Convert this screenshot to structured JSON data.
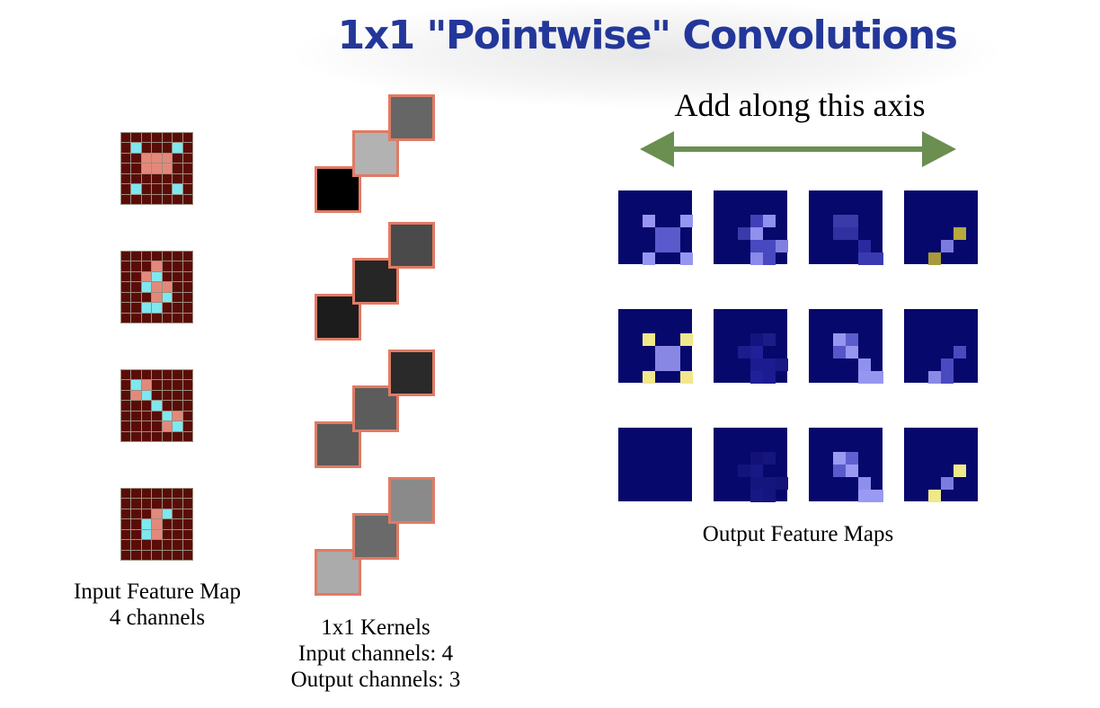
{
  "title": "1x1 \"Pointwise\" Convolutions",
  "axis_label": "Add along this axis",
  "input_label": "Input Feature Map\n4 channels",
  "kernel_label": "1x1 Kernels\nInput channels: 4\nOutput channels: 3",
  "output_label": "Output Feature Maps",
  "colors": {
    "title": "#23379a",
    "input_bg": "#5a0d08",
    "input_salmon": "#e3897b",
    "input_cyan": "#7de8f0",
    "kernel_border": "#e07b64",
    "arrow": "#6a8f50",
    "output_bg": "#06086b"
  },
  "input_maps": [
    [
      [
        1,
        1,
        "cyan"
      ],
      [
        5,
        1,
        "cyan"
      ],
      [
        2,
        2,
        "salmon"
      ],
      [
        3,
        2,
        "salmon"
      ],
      [
        4,
        2,
        "salmon"
      ],
      [
        2,
        3,
        "salmon"
      ],
      [
        3,
        3,
        "salmon"
      ],
      [
        4,
        3,
        "salmon"
      ],
      [
        1,
        5,
        "cyan"
      ],
      [
        5,
        5,
        "cyan"
      ]
    ],
    [
      [
        3,
        1,
        "salmon"
      ],
      [
        2,
        2,
        "salmon"
      ],
      [
        3,
        2,
        "cyan"
      ],
      [
        2,
        3,
        "cyan"
      ],
      [
        3,
        3,
        "salmon"
      ],
      [
        4,
        3,
        "salmon"
      ],
      [
        3,
        4,
        "salmon"
      ],
      [
        4,
        4,
        "cyan"
      ],
      [
        2,
        5,
        "cyan"
      ],
      [
        3,
        5,
        "cyan"
      ]
    ],
    [
      [
        1,
        1,
        "cyan"
      ],
      [
        2,
        1,
        "salmon"
      ],
      [
        1,
        2,
        "salmon"
      ],
      [
        2,
        2,
        "cyan"
      ],
      [
        3,
        3,
        "cyan"
      ],
      [
        4,
        4,
        "cyan"
      ],
      [
        5,
        4,
        "salmon"
      ],
      [
        4,
        5,
        "salmon"
      ],
      [
        5,
        5,
        "cyan"
      ]
    ],
    [
      [
        3,
        2,
        "salmon"
      ],
      [
        4,
        2,
        "cyan"
      ],
      [
        2,
        3,
        "cyan"
      ],
      [
        3,
        3,
        "salmon"
      ],
      [
        3,
        4,
        "salmon"
      ],
      [
        2,
        4,
        "cyan"
      ]
    ]
  ],
  "kernels": [
    [
      "#000000",
      "#b2b2b2",
      "#666666"
    ],
    [
      "#1c1c1c",
      "#262626",
      "#4a4a4a"
    ],
    [
      "#5a5a5a",
      "#5c5c5c",
      "#2a2a2a"
    ],
    [
      "#ababab",
      "#6a6a6a",
      "#8a8a8a"
    ]
  ],
  "output_maps": [
    [
      [
        [
          1,
          1,
          "#9696f2"
        ],
        [
          4,
          1,
          "#9696f2"
        ],
        [
          2,
          2,
          "#5a5acc"
        ],
        [
          3,
          2,
          "#5a5acc"
        ],
        [
          2,
          3,
          "#5a5acc"
        ],
        [
          3,
          3,
          "#5a5acc"
        ],
        [
          1,
          4,
          "#9696f2"
        ],
        [
          4,
          4,
          "#9696f2"
        ]
      ],
      [
        [
          2,
          1,
          "#4040b8"
        ],
        [
          3,
          1,
          "#9090ee"
        ],
        [
          1,
          2,
          "#3a3aaa"
        ],
        [
          2,
          2,
          "#9090ee"
        ],
        [
          2,
          3,
          "#4848c0"
        ],
        [
          3,
          3,
          "#4848c0"
        ],
        [
          4,
          3,
          "#8080e0"
        ],
        [
          2,
          4,
          "#8a8ae8"
        ],
        [
          3,
          4,
          "#4848c0"
        ]
      ],
      [
        [
          1,
          1,
          "#3a3aa8"
        ],
        [
          2,
          1,
          "#3a3aa8"
        ],
        [
          1,
          2,
          "#3030a0"
        ],
        [
          2,
          2,
          "#3030a0"
        ],
        [
          3,
          3,
          "#2a2aa0"
        ],
        [
          3,
          4,
          "#3a3ab0"
        ],
        [
          4,
          4,
          "#3a3ab0"
        ]
      ],
      [
        [
          3,
          2,
          "#b8a840"
        ],
        [
          2,
          3,
          "#7a7ae0"
        ],
        [
          1,
          4,
          "#a89a3a"
        ]
      ]
    ],
    [
      [
        [
          1,
          1,
          "#f0e88a"
        ],
        [
          4,
          1,
          "#f0e88a"
        ],
        [
          2,
          2,
          "#8888e4"
        ],
        [
          3,
          2,
          "#8888e4"
        ],
        [
          2,
          3,
          "#8888e4"
        ],
        [
          3,
          3,
          "#8888e4"
        ],
        [
          1,
          4,
          "#f0e88a"
        ],
        [
          4,
          4,
          "#f0e88a"
        ]
      ],
      [
        [
          2,
          1,
          "#141480"
        ],
        [
          3,
          1,
          "#1c1c88"
        ],
        [
          1,
          2,
          "#1c1c8c"
        ],
        [
          2,
          2,
          "#202098"
        ],
        [
          2,
          3,
          "#1c1c90"
        ],
        [
          3,
          3,
          "#1c1c90"
        ],
        [
          4,
          3,
          "#181886"
        ],
        [
          2,
          4,
          "#202098"
        ],
        [
          3,
          4,
          "#1c1c90"
        ]
      ],
      [
        [
          1,
          1,
          "#9696f0"
        ],
        [
          2,
          1,
          "#5c5ccc"
        ],
        [
          1,
          2,
          "#5656c8"
        ],
        [
          2,
          2,
          "#9696f0"
        ],
        [
          3,
          3,
          "#9090ee"
        ],
        [
          3,
          4,
          "#9696f0"
        ],
        [
          4,
          4,
          "#9696f0"
        ]
      ],
      [
        [
          3,
          2,
          "#4a4ac0"
        ],
        [
          2,
          3,
          "#4a4ac0"
        ],
        [
          1,
          4,
          "#8a8ae6"
        ],
        [
          2,
          4,
          "#4a4ac0"
        ]
      ]
    ],
    [
      [],
      [
        [
          2,
          1,
          "#111178"
        ],
        [
          3,
          1,
          "#15157e"
        ],
        [
          1,
          2,
          "#13137c"
        ],
        [
          2,
          2,
          "#181884"
        ],
        [
          2,
          3,
          "#15157e"
        ],
        [
          3,
          3,
          "#15157e"
        ],
        [
          4,
          3,
          "#13137a"
        ],
        [
          2,
          4,
          "#181884"
        ],
        [
          3,
          4,
          "#15157e"
        ]
      ],
      [
        [
          1,
          1,
          "#9a9af2"
        ],
        [
          2,
          1,
          "#6060d0"
        ],
        [
          1,
          2,
          "#5a5acc"
        ],
        [
          2,
          2,
          "#9a9af2"
        ],
        [
          3,
          3,
          "#8e8eec"
        ],
        [
          3,
          4,
          "#9a9af2"
        ],
        [
          4,
          4,
          "#9a9af2"
        ]
      ],
      [
        [
          3,
          2,
          "#f0e88a"
        ],
        [
          2,
          3,
          "#7c7ce0"
        ],
        [
          1,
          4,
          "#f0e88a"
        ]
      ]
    ]
  ]
}
